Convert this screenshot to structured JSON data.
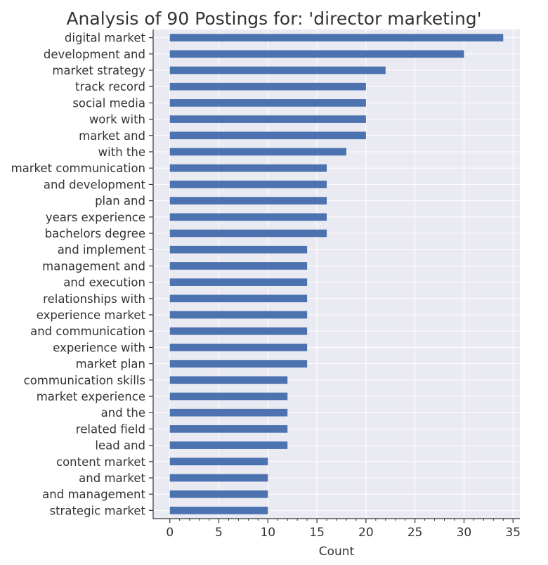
{
  "chart_data": {
    "type": "bar",
    "orientation": "horizontal",
    "title": "Analysis of 90 Postings for: 'director marketing'",
    "xlabel": "Count",
    "ylabel": "",
    "xlim": [
      -1.7,
      35.7
    ],
    "x_ticks": [
      0,
      5,
      10,
      15,
      20,
      25,
      30,
      35
    ],
    "x_minor_tick_step": 1,
    "grid": true,
    "categories": [
      "digital market",
      "development and",
      "market strategy",
      "track record",
      "social media",
      "work with",
      "market and",
      "with the",
      "market communication",
      "and development",
      "plan and",
      "years experience",
      "bachelors degree",
      "and implement",
      "management and",
      "and execution",
      "relationships with",
      "experience market",
      "and communication",
      "experience with",
      "market plan",
      "communication skills",
      "market experience",
      "and the",
      "related field",
      "lead and",
      "content market",
      "and market",
      "and management",
      "strategic market"
    ],
    "values": [
      34,
      30,
      22,
      20,
      20,
      20,
      20,
      18,
      16,
      16,
      16,
      16,
      16,
      14,
      14,
      14,
      14,
      14,
      14,
      14,
      14,
      12,
      12,
      12,
      12,
      12,
      10,
      10,
      10,
      10
    ],
    "colors": {
      "bar": "#4c72b0",
      "plot_background": "#eaeaf2",
      "grid": "#ffffff",
      "axis": "#333333",
      "text": "#333333"
    }
  }
}
